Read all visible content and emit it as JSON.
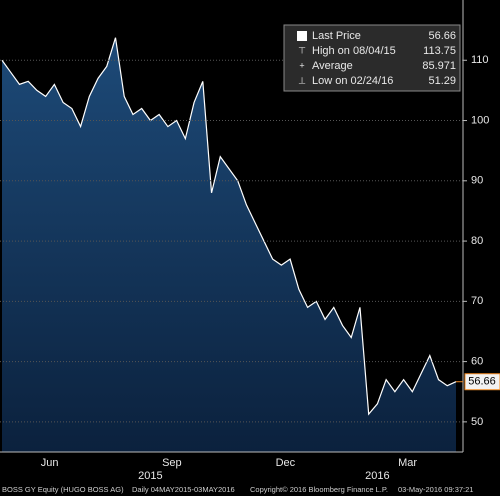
{
  "chart_data": {
    "type": "area",
    "categories": [
      null,
      null,
      null,
      null,
      null,
      "Jun",
      null,
      null,
      null,
      null,
      null,
      null,
      null,
      null,
      null,
      null,
      null,
      null,
      null,
      "Sep",
      null,
      null,
      null,
      null,
      null,
      null,
      null,
      null,
      null,
      null,
      null,
      null,
      "Dec",
      null,
      null,
      null,
      null,
      null,
      null,
      null,
      null,
      null,
      null,
      null,
      null,
      null,
      "Mar",
      null,
      null,
      null,
      null,
      null,
      null
    ],
    "years": [
      null,
      null,
      null,
      null,
      null,
      null,
      null,
      null,
      null,
      null,
      null,
      null,
      null,
      null,
      null,
      null,
      null,
      "2015",
      null,
      null,
      null,
      null,
      null,
      null,
      null,
      null,
      null,
      null,
      null,
      null,
      null,
      null,
      null,
      null,
      null,
      null,
      null,
      null,
      null,
      null,
      null,
      null,
      null,
      "2016",
      null,
      null,
      null,
      null,
      null,
      null,
      null,
      null,
      null
    ],
    "series": [
      {
        "name": "Last Price",
        "color": "#ffffff",
        "fill": "#14335a",
        "values": [
          110,
          108,
          106,
          106.5,
          105,
          104,
          106,
          103,
          102,
          99,
          104,
          107,
          109,
          113.75,
          104,
          101,
          102,
          100,
          101,
          99,
          100,
          97,
          103,
          106.5,
          88,
          94,
          92,
          90,
          86,
          83,
          80,
          77,
          76,
          77,
          72,
          69,
          70,
          67,
          69,
          66,
          64,
          69,
          51.29,
          53,
          57,
          55,
          57,
          55,
          58,
          61,
          57,
          56,
          56.66
        ]
      }
    ],
    "stats": [
      {
        "name": "Last Price",
        "value": 56.66
      },
      {
        "name": "High on 08/04/15",
        "value": 113.75
      },
      {
        "name": "Average",
        "value": 85.971
      },
      {
        "name": "Low on 02/24/16",
        "value": 51.29
      }
    ],
    "ylim": [
      45,
      120
    ],
    "yticks": [
      50,
      60,
      70,
      80,
      90,
      100,
      110
    ],
    "grid": true,
    "footer": [
      "BOSS GY Equity (HUGO BOSS AG)",
      "Daily 04MAY2015-03MAY2016",
      "Copyright© 2016 Bloomberg Finance L.P.",
      "03-May-2016 09:37:21"
    ]
  }
}
